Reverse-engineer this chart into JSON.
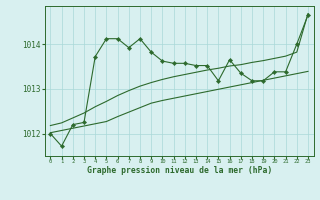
{
  "x": [
    0,
    1,
    2,
    3,
    4,
    5,
    6,
    7,
    8,
    9,
    10,
    11,
    12,
    13,
    14,
    15,
    16,
    17,
    18,
    19,
    20,
    21,
    22,
    23
  ],
  "pressure": [
    1012.0,
    1011.72,
    1012.2,
    1012.25,
    1013.72,
    1014.12,
    1014.12,
    1013.92,
    1014.12,
    1013.82,
    1013.62,
    1013.57,
    1013.57,
    1013.52,
    1013.52,
    1013.18,
    1013.65,
    1013.35,
    1013.18,
    1013.18,
    1013.38,
    1013.38,
    1014.0,
    1014.65
  ],
  "trend_low": [
    1012.02,
    1012.07,
    1012.12,
    1012.17,
    1012.22,
    1012.27,
    1012.38,
    1012.48,
    1012.58,
    1012.68,
    1012.74,
    1012.79,
    1012.84,
    1012.89,
    1012.94,
    1012.99,
    1013.04,
    1013.09,
    1013.14,
    1013.19,
    1013.24,
    1013.29,
    1013.34,
    1013.39
  ],
  "trend_high": [
    1012.18,
    1012.24,
    1012.35,
    1012.46,
    1012.6,
    1012.72,
    1012.85,
    1012.96,
    1013.06,
    1013.14,
    1013.21,
    1013.27,
    1013.32,
    1013.37,
    1013.42,
    1013.46,
    1013.51,
    1013.54,
    1013.59,
    1013.63,
    1013.68,
    1013.73,
    1013.82,
    1014.68
  ],
  "line_color": "#2d6a2d",
  "bg_color": "#d8f0f0",
  "grid_color": "#aad8d8",
  "xlabel": "Graphe pression niveau de la mer (hPa)",
  "yticks": [
    1012,
    1013,
    1014
  ],
  "xticks": [
    0,
    1,
    2,
    3,
    4,
    5,
    6,
    7,
    8,
    9,
    10,
    11,
    12,
    13,
    14,
    15,
    16,
    17,
    18,
    19,
    20,
    21,
    22,
    23
  ],
  "ylim": [
    1011.5,
    1014.85
  ],
  "xlim": [
    -0.5,
    23.5
  ]
}
